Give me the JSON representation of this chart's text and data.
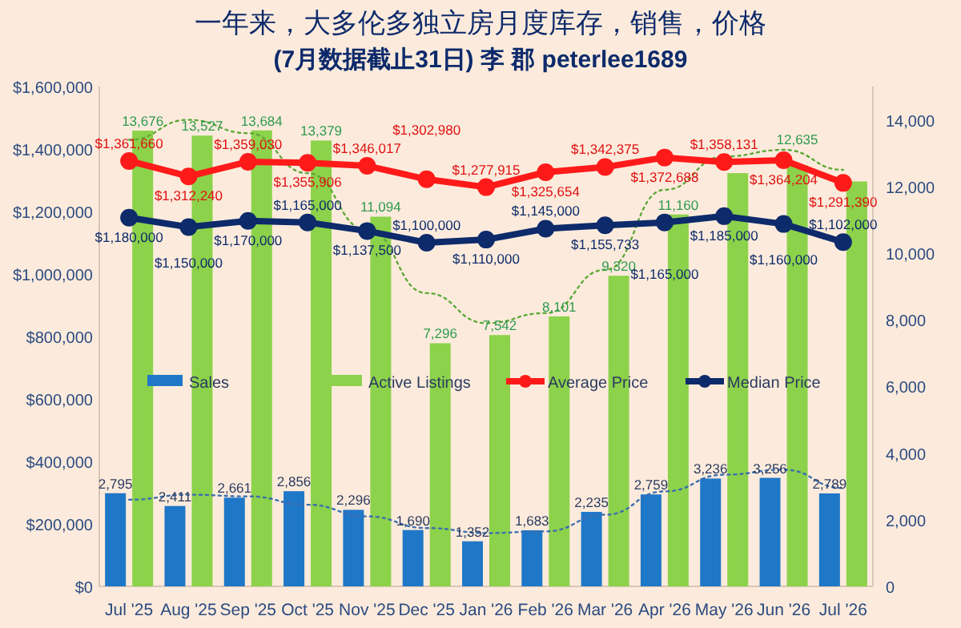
{
  "chart_data": {
    "type": "bar",
    "title": "一年来，大多伦多独立房月度库存，销售，价格",
    "subtitle": "(7月数据截止31日) 李 郡 peterlee1689",
    "categories": [
      "Jul '25",
      "Aug '25",
      "Sep '25",
      "Oct '25",
      "Nov '25",
      "Dec '25",
      "Jan '26",
      "Feb '26",
      "Mar '26",
      "Apr '26",
      "May '26",
      "Jun '26",
      "Jul '26"
    ],
    "ylim": [
      0,
      1600000
    ],
    "yticks": [
      {
        "value": 0,
        "label": "$0"
      },
      {
        "value": 200000,
        "label": "$200,000"
      },
      {
        "value": 400000,
        "label": "$400,000"
      },
      {
        "value": 600000,
        "label": "$600,000"
      },
      {
        "value": 800000,
        "label": "$800,000"
      },
      {
        "value": 1000000,
        "label": "$1,000,000"
      },
      {
        "value": 1200000,
        "label": "$1,200,000"
      },
      {
        "value": 1400000,
        "label": "$1,400,000"
      },
      {
        "value": 1600000,
        "label": "$1,600,000"
      }
    ],
    "y2lim": [
      0,
      15000
    ],
    "y2ticks": [
      {
        "value": 0,
        "label": "0"
      },
      {
        "value": 2000,
        "label": "2,000"
      },
      {
        "value": 4000,
        "label": "4,000"
      },
      {
        "value": 6000,
        "label": "6,000"
      },
      {
        "value": 8000,
        "label": "8,000"
      },
      {
        "value": 10000,
        "label": "10,000"
      },
      {
        "value": 12000,
        "label": "12,000"
      },
      {
        "value": 14000,
        "label": "14,000"
      }
    ],
    "legend": "center",
    "grid": false,
    "series": [
      {
        "name": "Sales",
        "axis": "y2",
        "color": "#1f77c8",
        "values": [
          2795,
          2411,
          2661,
          2856,
          2296,
          1690,
          1352,
          1683,
          2235,
          2759,
          3236,
          3256,
          2789
        ],
        "value_labels": [
          "2,795",
          "2,411",
          "2,661",
          "2,856",
          "2,296",
          "1,690",
          "1,352",
          "1,683",
          "2,235",
          "2,759",
          "3,236",
          "3,256",
          "2,789"
        ]
      },
      {
        "name": "Active Listings",
        "axis": "y2",
        "color": "#8cd24a",
        "values": [
          13676,
          13527,
          13684,
          13379,
          11094,
          7296,
          7542,
          8101,
          9320,
          11160,
          12400,
          12635,
          12150
        ],
        "value_labels": [
          "13,676",
          "13,527",
          "13,684",
          "13,379",
          "11,094",
          "7,296",
          "7,542",
          "8,101",
          "9,320",
          "11,160",
          null,
          "12,635",
          null
        ]
      },
      {
        "name": "Average Price",
        "type": "line",
        "marker": "circle",
        "color": "#ff1a1a",
        "values": [
          1361660,
          1312240,
          1359030,
          1355906,
          1346017,
          1302980,
          1277915,
          1325654,
          1342375,
          1372688,
          1358131,
          1364204,
          1291390
        ],
        "value_labels": [
          "$1,361,660",
          "$1,312,240",
          "$1,359,030",
          "$1,355,906",
          "$1,346,017",
          "$1,302,980",
          "$1,277,915",
          "$1,325,654",
          "$1,342,375",
          "$1,372,688",
          "$1,358,131",
          "$1,364,204",
          "$1,291,390"
        ]
      },
      {
        "name": "Median Price",
        "type": "line",
        "marker": "circle",
        "color": "#0d2a6b",
        "values": [
          1180000,
          1150000,
          1170000,
          1165000,
          1137500,
          1100000,
          1110000,
          1145000,
          1155733,
          1165000,
          1185000,
          1160000,
          1102000
        ],
        "value_labels": [
          "$1,180,000",
          "$1,150,000",
          "$1,170,000",
          "$1,165,000",
          "$1,137,500",
          "$1,100,000",
          "$1,110,000",
          "$1,145,000",
          "$1,155,733",
          "$1,165,000",
          "$1,185,000",
          "$1,160,000",
          "$1,102,000"
        ]
      },
      {
        "type": "line",
        "axis": "y2",
        "line_style": "dotted",
        "marker": "none",
        "color": "#5fa83a",
        "values": [
          13400,
          14000,
          13600,
          12400,
          10700,
          8800,
          7900,
          8200,
          9500,
          11900,
          12900,
          13100,
          12500
        ]
      },
      {
        "type": "line",
        "axis": "y2",
        "line_style": "dotted",
        "marker": "none",
        "color": "#3a6fb0",
        "values": [
          2600,
          2750,
          2700,
          2450,
          2100,
          1750,
          1600,
          1650,
          2150,
          2850,
          3350,
          3500,
          2950
        ]
      }
    ]
  }
}
